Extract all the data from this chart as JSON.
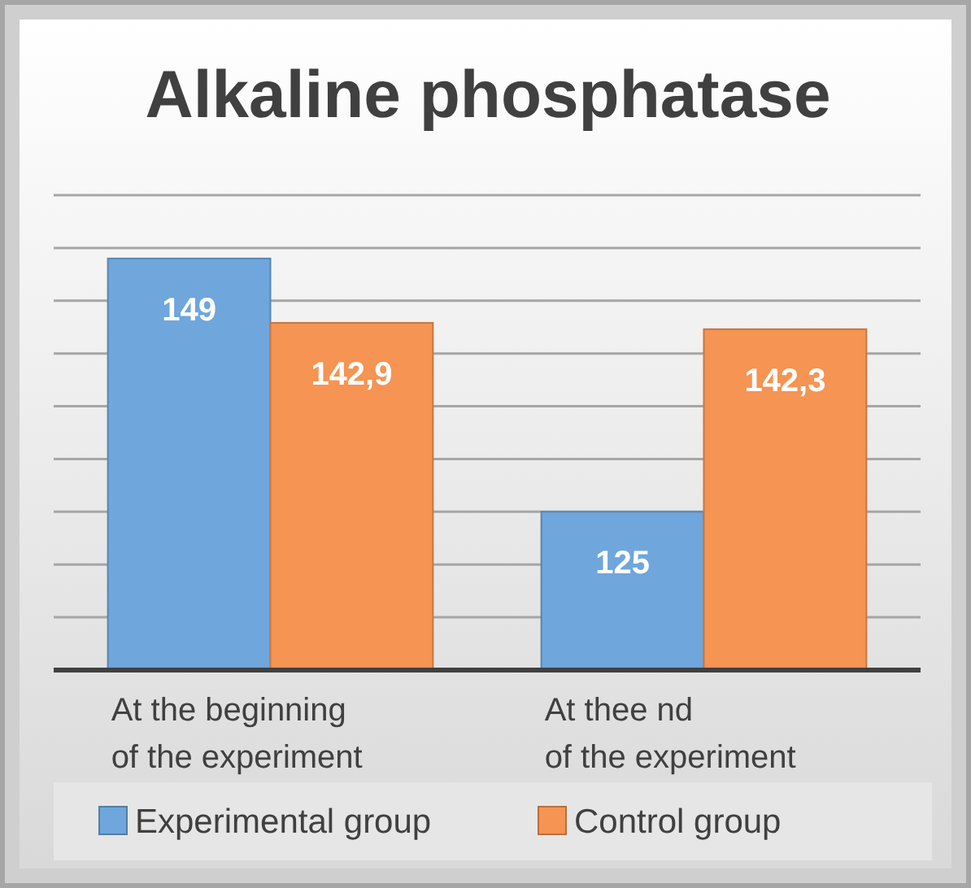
{
  "chart_data": {
    "type": "bar",
    "title": "Alkaline phosphatase",
    "categories": [
      "At the beginning\nof the experiment",
      "At thee nd\nof the experiment"
    ],
    "series": [
      {
        "name": "Experimental group",
        "color": "#6fa6dc",
        "values": [
          149,
          125
        ],
        "value_labels": [
          "149",
          "125"
        ]
      },
      {
        "name": "Control group",
        "color": "#f59453",
        "values": [
          142.9,
          142.3
        ],
        "value_labels": [
          "142,9",
          "142,3"
        ]
      }
    ],
    "ylim": [
      110,
      155
    ],
    "yticks": [
      {
        "value": 110,
        "label": null
      },
      {
        "value": 115,
        "label": null
      },
      {
        "value": 120,
        "label": null
      },
      {
        "value": 125,
        "label": null
      },
      {
        "value": 130,
        "label": null
      },
      {
        "value": 135,
        "label": null
      },
      {
        "value": 140,
        "label": null
      },
      {
        "value": 145,
        "label": null
      },
      {
        "value": 150,
        "label": null
      },
      {
        "value": 155,
        "label": null
      }
    ],
    "tick_labels": "x",
    "grid": "y",
    "legend": "bottom"
  }
}
